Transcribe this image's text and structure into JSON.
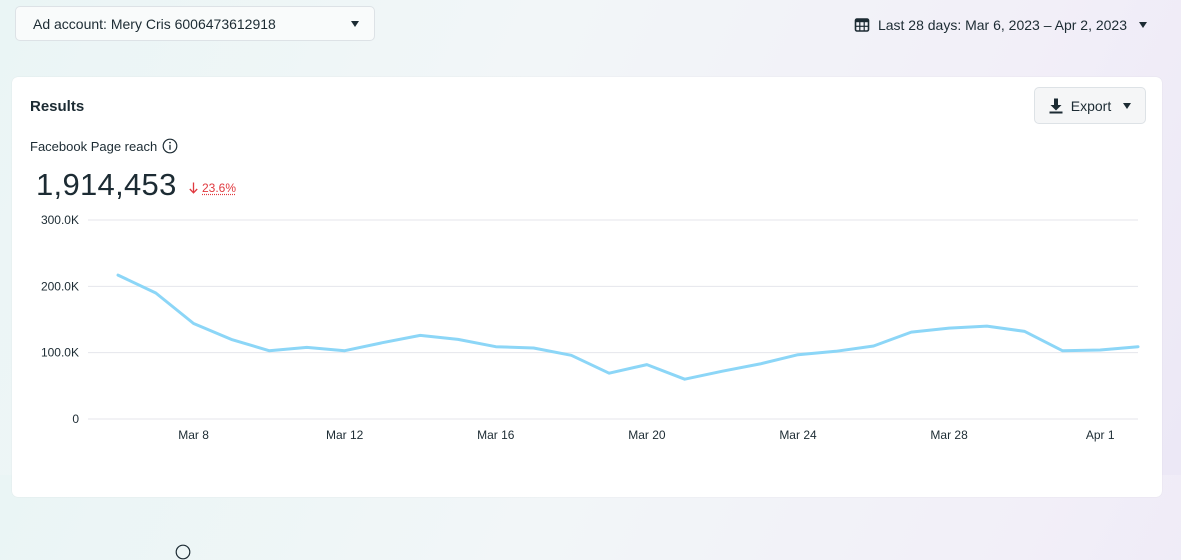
{
  "header": {
    "ad_account_label": "Ad account: Mery Cris 6006473612918",
    "date_range_label": "Last 28 days: Mar 6, 2023 – Apr 2, 2023"
  },
  "results": {
    "title": "Results",
    "export_label": "Export",
    "metric_title": "Facebook Page reach",
    "metric_value": "1,914,453",
    "metric_change": "23.6%",
    "metric_change_direction": "down"
  },
  "colors": {
    "line": "#8cd6f7",
    "negative": "#e0383e",
    "grid": "#e4e6eb"
  },
  "icons": {
    "account_dropdown": "chevron-down-icon",
    "date_range": "calendar-icon",
    "export": "download-icon",
    "info": "info-icon",
    "change": "down-arrow-icon"
  },
  "chart_data": {
    "type": "line",
    "title": "",
    "xlabel": "",
    "ylabel": "",
    "ylim": [
      0,
      300000
    ],
    "y_ticks": [
      {
        "value": 0,
        "label": "0"
      },
      {
        "value": 100000,
        "label": "100.0K"
      },
      {
        "value": 200000,
        "label": "200.0K"
      },
      {
        "value": 300000,
        "label": "300.0K"
      }
    ],
    "x_ticks": [
      {
        "date": "Mar 8",
        "label": "Mar 8"
      },
      {
        "date": "Mar 12",
        "label": "Mar 12"
      },
      {
        "date": "Mar 16",
        "label": "Mar 16"
      },
      {
        "date": "Mar 20",
        "label": "Mar 20"
      },
      {
        "date": "Mar 24",
        "label": "Mar 24"
      },
      {
        "date": "Mar 28",
        "label": "Mar 28"
      },
      {
        "date": "Apr 1",
        "label": "Apr 1"
      }
    ],
    "grid": true,
    "legend": "none",
    "series": [
      {
        "x": [
          "Mar 6",
          "Mar 7",
          "Mar 8",
          "Mar 9",
          "Mar 10",
          "Mar 11",
          "Mar 12",
          "Mar 13",
          "Mar 14",
          "Mar 15",
          "Mar 16",
          "Mar 17",
          "Mar 18",
          "Mar 19",
          "Mar 20",
          "Mar 21",
          "Mar 22",
          "Mar 23",
          "Mar 24",
          "Mar 25",
          "Mar 26",
          "Mar 27",
          "Mar 28",
          "Mar 29",
          "Mar 30",
          "Mar 31",
          "Apr 1",
          "Apr 2"
        ],
        "values": [
          217000,
          190000,
          144000,
          120000,
          103000,
          108000,
          103000,
          115000,
          126000,
          120000,
          109000,
          107000,
          96000,
          69000,
          82000,
          60000,
          72000,
          83000,
          97000,
          102000,
          110000,
          131000,
          137000,
          140000,
          132000,
          103000,
          104000,
          109000
        ]
      }
    ]
  }
}
